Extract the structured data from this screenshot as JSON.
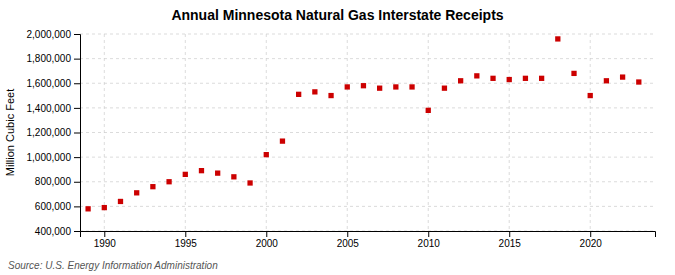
{
  "chart_data": {
    "type": "scatter",
    "title": "Annual Minnesota Natural Gas Interstate Receipts",
    "ylabel": "Million Cubic Feet",
    "source": "Source: U.S. Energy Information Administration",
    "x": [
      1989,
      1990,
      1991,
      1992,
      1993,
      1994,
      1995,
      1996,
      1997,
      1998,
      1999,
      2000,
      2001,
      2002,
      2003,
      2004,
      2005,
      2006,
      2007,
      2008,
      2009,
      2010,
      2011,
      2012,
      2013,
      2014,
      2015,
      2016,
      2017,
      2018,
      2019,
      2020,
      2021,
      2022,
      2023
    ],
    "values": [
      580000,
      590000,
      640000,
      710000,
      760000,
      800000,
      860000,
      890000,
      870000,
      840000,
      790000,
      1020000,
      1130000,
      1510000,
      1530000,
      1500000,
      1570000,
      1580000,
      1560000,
      1570000,
      1570000,
      1380000,
      1560000,
      1620000,
      1660000,
      1640000,
      1630000,
      1640000,
      1640000,
      1960000,
      1680000,
      1500000,
      1620000,
      1650000,
      1610000
    ],
    "color": "#cc0000",
    "marker": "square",
    "xlim": [
      1988.5,
      2024
    ],
    "ylim": [
      400000,
      2000000
    ],
    "xticks": [
      1990,
      1995,
      2000,
      2005,
      2010,
      2015,
      2020
    ],
    "yticks": [
      {
        "value": 400000,
        "label": "400,000"
      },
      {
        "value": 600000,
        "label": "600,000"
      },
      {
        "value": 800000,
        "label": "800,000"
      },
      {
        "value": 1000000,
        "label": "1,000,000"
      },
      {
        "value": 1200000,
        "label": "1,200,000"
      },
      {
        "value": 1400000,
        "label": "1,400,000"
      },
      {
        "value": 1600000,
        "label": "1,600,000"
      },
      {
        "value": 1800000,
        "label": "1,800,000"
      },
      {
        "value": 2000000,
        "label": "2,000,000"
      }
    ],
    "grid": true
  }
}
